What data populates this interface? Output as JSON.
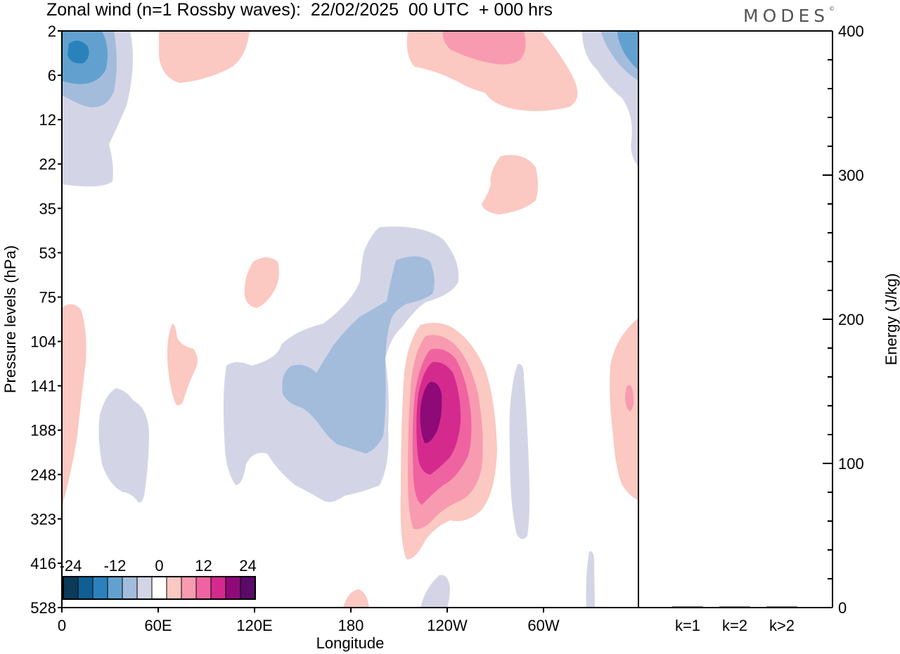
{
  "title": "Zonal wind (n=1 Rossby waves):  22/02/2025  00 UTC  + 000 hrs",
  "brand": "MODES",
  "brand_mark": "©",
  "chart_data": [
    {
      "type": "heatmap",
      "title": "Zonal wind (n=1 Rossby waves):  22/02/2025  00 UTC  + 000 hrs",
      "xlabel": "Longitude",
      "ylabel": "Pressure levels (hPa)",
      "xticks": [
        "0",
        "60E",
        "120E",
        "180",
        "120W",
        "60W"
      ],
      "yticks": [
        "2",
        "6",
        "12",
        "22",
        "35",
        "53",
        "75",
        "104",
        "141",
        "188",
        "248",
        "323",
        "416",
        "528"
      ],
      "colorbar": {
        "labels": [
          "-24",
          "-12",
          "0",
          "12",
          "24"
        ],
        "colors": [
          "#0b3a5a",
          "#0f5f92",
          "#2a82bd",
          "#62a1cf",
          "#a3bcdc",
          "#d3d5e7",
          "#ffffff",
          "#fbc8c2",
          "#f89bb0",
          "#ef63a1",
          "#d42a8e",
          "#8e0a78",
          "#5a0a68"
        ]
      }
    },
    {
      "type": "bar",
      "categories": [
        "k=1",
        "k=2",
        "k>2"
      ],
      "values": [
        0.6,
        0.3,
        0.6
      ],
      "ylabel": "Energy (J/kg)",
      "ylim": [
        0,
        400
      ],
      "yticks": [
        "0",
        "100",
        "200",
        "300",
        "400"
      ]
    }
  ]
}
